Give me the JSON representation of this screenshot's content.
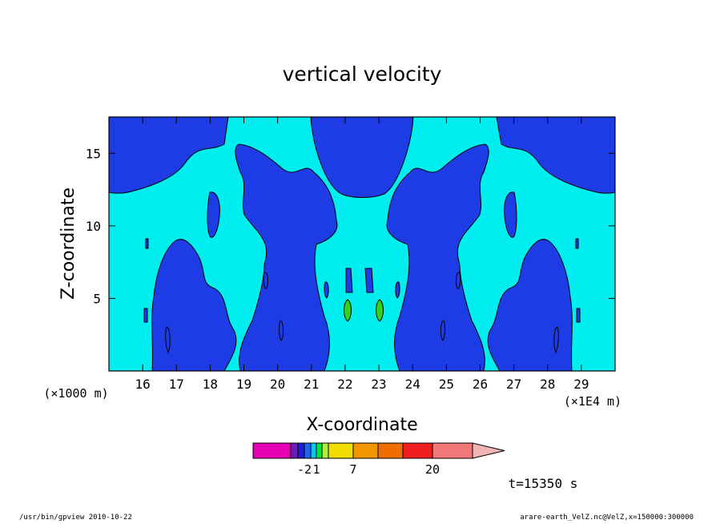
{
  "chart_data": {
    "type": "heatmap",
    "title": "vertical velocity",
    "xlabel": "X-coordinate",
    "ylabel": "Z-coordinate",
    "x_unit_left": "(×1000 m)",
    "x_unit_right": "(×1E4 m)",
    "xlim": [
      150000,
      300000
    ],
    "ylim": [
      0,
      17500
    ],
    "x_ticks": [
      {
        "value": 160000,
        "label": "16"
      },
      {
        "value": 170000,
        "label": "17"
      },
      {
        "value": 180000,
        "label": "18"
      },
      {
        "value": 190000,
        "label": "19"
      },
      {
        "value": 200000,
        "label": "20"
      },
      {
        "value": 210000,
        "label": "21"
      },
      {
        "value": 220000,
        "label": "22"
      },
      {
        "value": 230000,
        "label": "23"
      },
      {
        "value": 240000,
        "label": "24"
      },
      {
        "value": 250000,
        "label": "25"
      },
      {
        "value": 260000,
        "label": "26"
      },
      {
        "value": 270000,
        "label": "27"
      },
      {
        "value": 280000,
        "label": "28"
      },
      {
        "value": 290000,
        "label": "29"
      }
    ],
    "y_ticks": [
      {
        "value": 5000,
        "label": "5"
      },
      {
        "value": 10000,
        "label": "10"
      },
      {
        "value": 15000,
        "label": "15"
      }
    ],
    "field_description_levels": {
      "background": "#00eef0",
      "downdraft": "#1e3ce6",
      "updraft": "#35d21d"
    },
    "colorbar": {
      "colors": [
        "#e600b4",
        "#6e1ab4",
        "#1e1ed2",
        "#1e64f0",
        "#00c8f0",
        "#00e63c",
        "#aaf03c",
        "#f0dc00",
        "#f09600",
        "#f06e00",
        "#f01e1e",
        "#f07878",
        "#f0b4b4"
      ],
      "labels": [
        {
          "text": "-2",
          "at_boundary": 3
        },
        {
          "text": "1",
          "at_boundary": 5
        },
        {
          "text": "7",
          "at_boundary": 8
        },
        {
          "text": "20",
          "at_boundary": 11
        }
      ]
    },
    "time_label": "t=15350 s"
  },
  "footer": {
    "left": "/usr/bin/gpview   2010-10-22",
    "right": "arare-earth_VelZ.nc@VelZ,x=150000:300000"
  }
}
